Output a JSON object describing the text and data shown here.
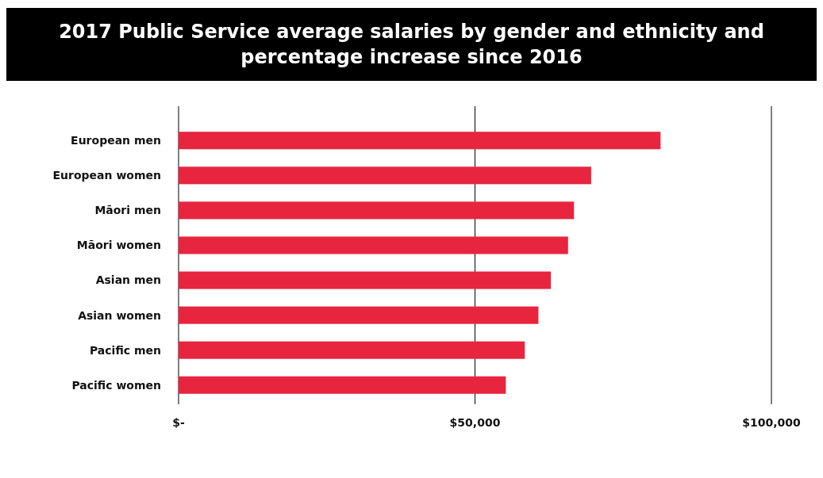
{
  "chart_data": {
    "type": "bar",
    "orientation": "horizontal",
    "title": "2017 Public Service average salaries by gender and ethnicity and percentage increase since 2016",
    "categories": [
      "European men",
      "European women",
      "Māori men",
      "Māori women",
      "Asian men",
      "Asian women",
      "Pacific men",
      "Pacific women"
    ],
    "values": [
      81300,
      69600,
      66700,
      65700,
      62800,
      60700,
      58400,
      55200
    ],
    "color": "#e8253f",
    "xlim": [
      0,
      100000
    ],
    "xticks": [
      {
        "value": 0,
        "label": "$-"
      },
      {
        "value": 50000,
        "label": "$50,000"
      },
      {
        "value": 100000,
        "label": "$100,000"
      }
    ],
    "grid": "x"
  }
}
